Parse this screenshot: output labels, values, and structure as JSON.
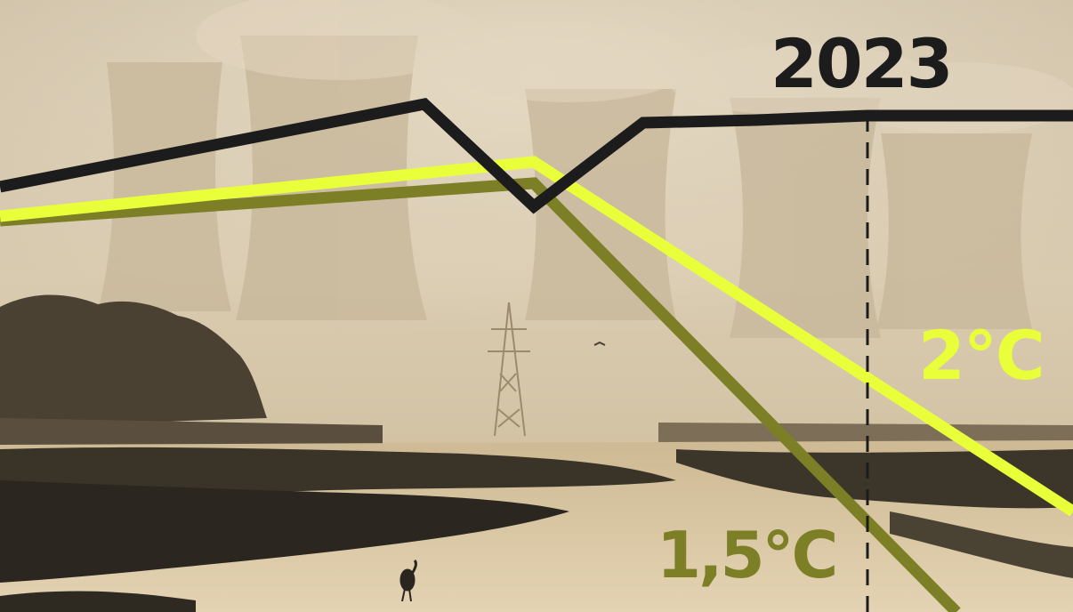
{
  "labels": {
    "year": "2023",
    "scenario_2c": "2°C",
    "scenario_15c": "1,5°C"
  },
  "colors": {
    "actual_line": "#1c1c1c",
    "scenario_2c": "#e8ff3a",
    "scenario_15c": "#7c7f25",
    "marker": "#1c1c1c",
    "sky": "#d8c9ae",
    "water": "#cbb894",
    "ground_dark": "#2b2720"
  },
  "photo": {
    "description_icon": "power-station-landscape-photo"
  }
}
